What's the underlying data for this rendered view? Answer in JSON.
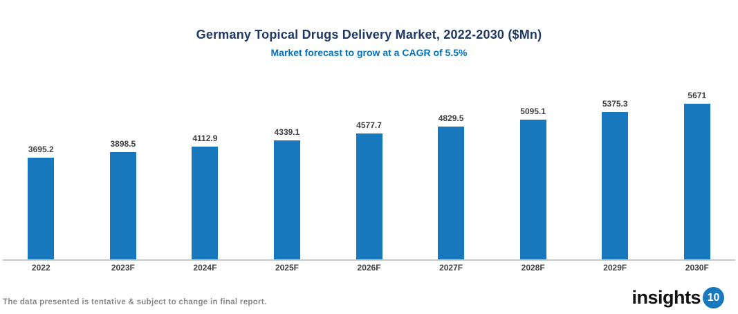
{
  "header": {
    "title": "Germany Topical Drugs Delivery Market, 2022-2030 ($Mn)",
    "subtitle": "Market forecast to grow at a CAGR of 5.5%"
  },
  "chart_data": {
    "type": "bar",
    "categories": [
      "2022",
      "2023F",
      "2024F",
      "2025F",
      "2026F",
      "2027F",
      "2028F",
      "2029F",
      "2030F"
    ],
    "values": [
      3695.2,
      3898.5,
      4112.9,
      4339.1,
      4577.7,
      4829.5,
      5095.1,
      5375.3,
      5671
    ],
    "title": "Germany Topical Drugs Delivery Market, 2022-2030 ($Mn)",
    "subtitle": "Market forecast to grow at a CAGR of 5.5%",
    "xlabel": "",
    "ylabel": "",
    "ylim": [
      0,
      5671
    ],
    "grid": false,
    "legend": false,
    "bar_color": "#1878BE",
    "value_label_color": "#404040",
    "axis_line_color": "#C9C9C9"
  },
  "footer": {
    "disclaimer": "The data presented is tentative & subject to change in final report.",
    "logo_text": "insights",
    "logo_badge": "10"
  },
  "colors": {
    "title": "#1F3864",
    "subtitle": "#0070C0",
    "bar": "#1878BE",
    "footer_text": "#8A8A8A",
    "logo_badge_bg": "#1878BE"
  }
}
